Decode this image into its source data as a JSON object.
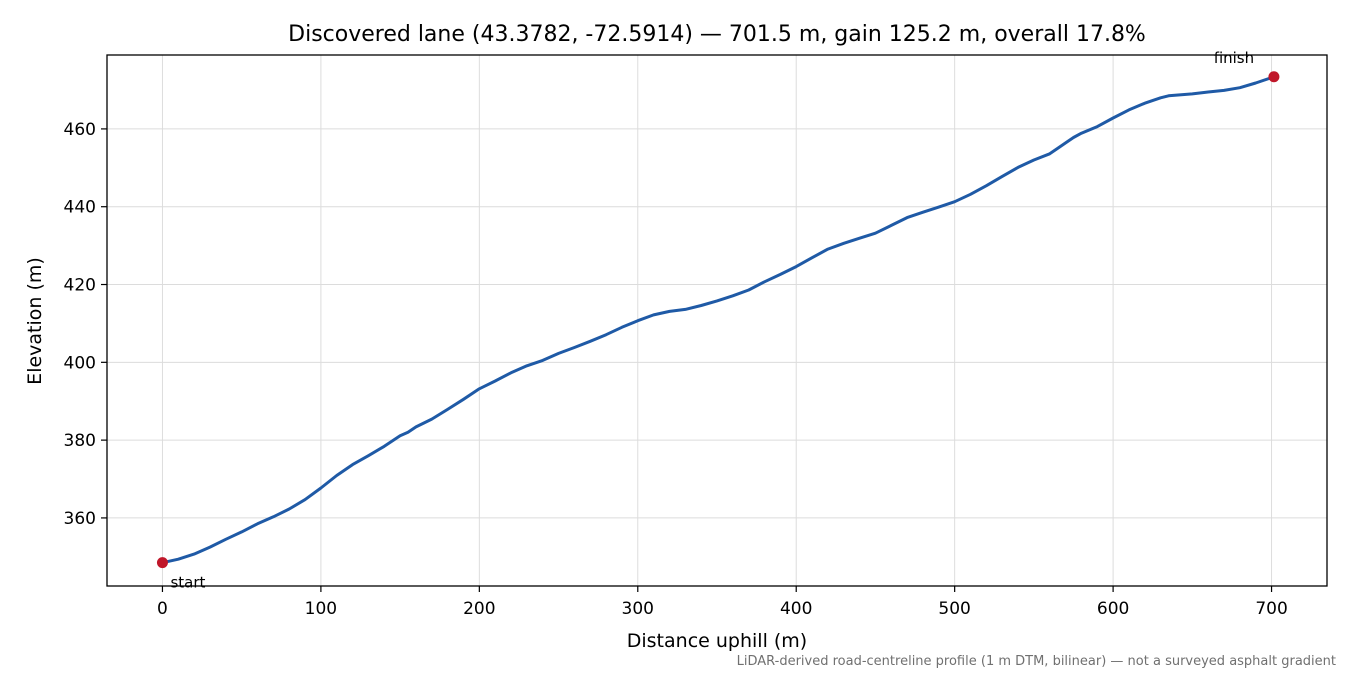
{
  "chart_data": {
    "type": "line",
    "title": "Discovered lane (43.3782, -72.5914) — 701.5 m, gain 125.2 m, overall 17.8%",
    "xlabel": "Distance uphill (m)",
    "ylabel": "Elevation (m)",
    "footnote": "LiDAR-derived road-centreline profile (1 m DTM, bilinear) — not a surveyed asphalt gradient",
    "xlim": [
      -35,
      735
    ],
    "ylim": [
      342.5,
      479
    ],
    "xticks": [
      0,
      100,
      200,
      300,
      400,
      500,
      600,
      700
    ],
    "yticks": [
      360,
      380,
      400,
      420,
      440,
      460
    ],
    "grid": true,
    "line_color": "#1f5aa6",
    "marker_color": "#c0172a",
    "series": [
      {
        "x": [
          0,
          10,
          20,
          30,
          40,
          50,
          60,
          70,
          80,
          90,
          100,
          110,
          120,
          130,
          140,
          150,
          155,
          160,
          165,
          170,
          180,
          190,
          200,
          210,
          220,
          230,
          240,
          250,
          260,
          270,
          280,
          290,
          300,
          310,
          320,
          330,
          340,
          350,
          360,
          370,
          380,
          390,
          400,
          410,
          420,
          430,
          440,
          450,
          460,
          470,
          480,
          490,
          500,
          510,
          520,
          530,
          540,
          550,
          560,
          565,
          570,
          575,
          580,
          590,
          600,
          610,
          620,
          630,
          635,
          640,
          650,
          660,
          670,
          680,
          690,
          701.5
        ],
        "y": [
          348.5,
          349.4,
          350.7,
          352.5,
          354.5,
          356.4,
          358.5,
          360.3,
          362.3,
          364.7,
          367.7,
          370.9,
          373.7,
          376.0,
          378.4,
          381.1,
          382.0,
          383.4,
          384.4,
          385.4,
          387.9,
          390.5,
          393.2,
          395.2,
          397.3,
          399.1,
          400.5,
          402.3,
          403.8,
          405.4,
          407.1,
          409.0,
          410.7,
          412.2,
          413.1,
          413.6,
          414.6,
          415.8,
          417.1,
          418.6,
          420.7,
          422.6,
          424.6,
          426.9,
          429.1,
          430.6,
          431.9,
          433.2,
          435.2,
          437.2,
          438.6,
          439.9,
          441.3,
          443.2,
          445.4,
          447.8,
          450.1,
          452.0,
          453.6,
          455.0,
          456.4,
          457.8,
          458.9,
          460.6,
          462.8,
          464.9,
          466.6,
          468.0,
          468.5,
          468.7,
          469.0,
          469.5,
          469.9,
          470.6,
          471.8,
          473.4
        ]
      }
    ],
    "annotations": [
      {
        "label": "start",
        "x": 0,
        "y": 348.5
      },
      {
        "label": "finish",
        "x": 701.5,
        "y": 473.4
      }
    ]
  }
}
